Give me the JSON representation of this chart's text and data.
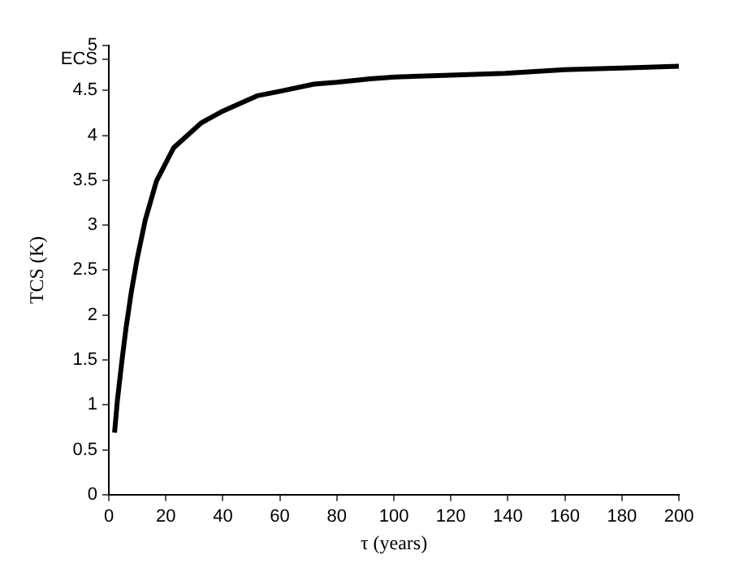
{
  "chart_data": {
    "type": "line",
    "xlabel": "τ (years)",
    "ylabel": "TCS (K)",
    "x": [
      2,
      3,
      4.7,
      6,
      7.9,
      9.9,
      12.8,
      16.7,
      22.7,
      32.5,
      40,
      52,
      60,
      72,
      80,
      91.7,
      100.6,
      120,
      139,
      160,
      180,
      200
    ],
    "series": [
      {
        "color": "#000000",
        "values": [
          0.69,
          1.05,
          1.52,
          1.85,
          2.26,
          2.62,
          3.06,
          3.49,
          3.86,
          4.14,
          4.27,
          4.44,
          4.49,
          4.57,
          4.59,
          4.63,
          4.65,
          4.67,
          4.69,
          4.73,
          4.75,
          4.77
        ]
      }
    ],
    "xlim": [
      0,
      200
    ],
    "xticks": [
      0,
      20,
      40,
      60,
      80,
      100,
      120,
      140,
      160,
      180,
      200
    ],
    "ylim": [
      0,
      5
    ],
    "yticks": [
      0,
      0.5,
      1,
      1.5,
      2,
      2.5,
      3,
      3.5,
      4,
      4.5,
      {
        "value": 4.85,
        "label": "ECS"
      },
      5
    ],
    "grid": false,
    "legend": false,
    "marker": "none",
    "line_style": "solid"
  }
}
